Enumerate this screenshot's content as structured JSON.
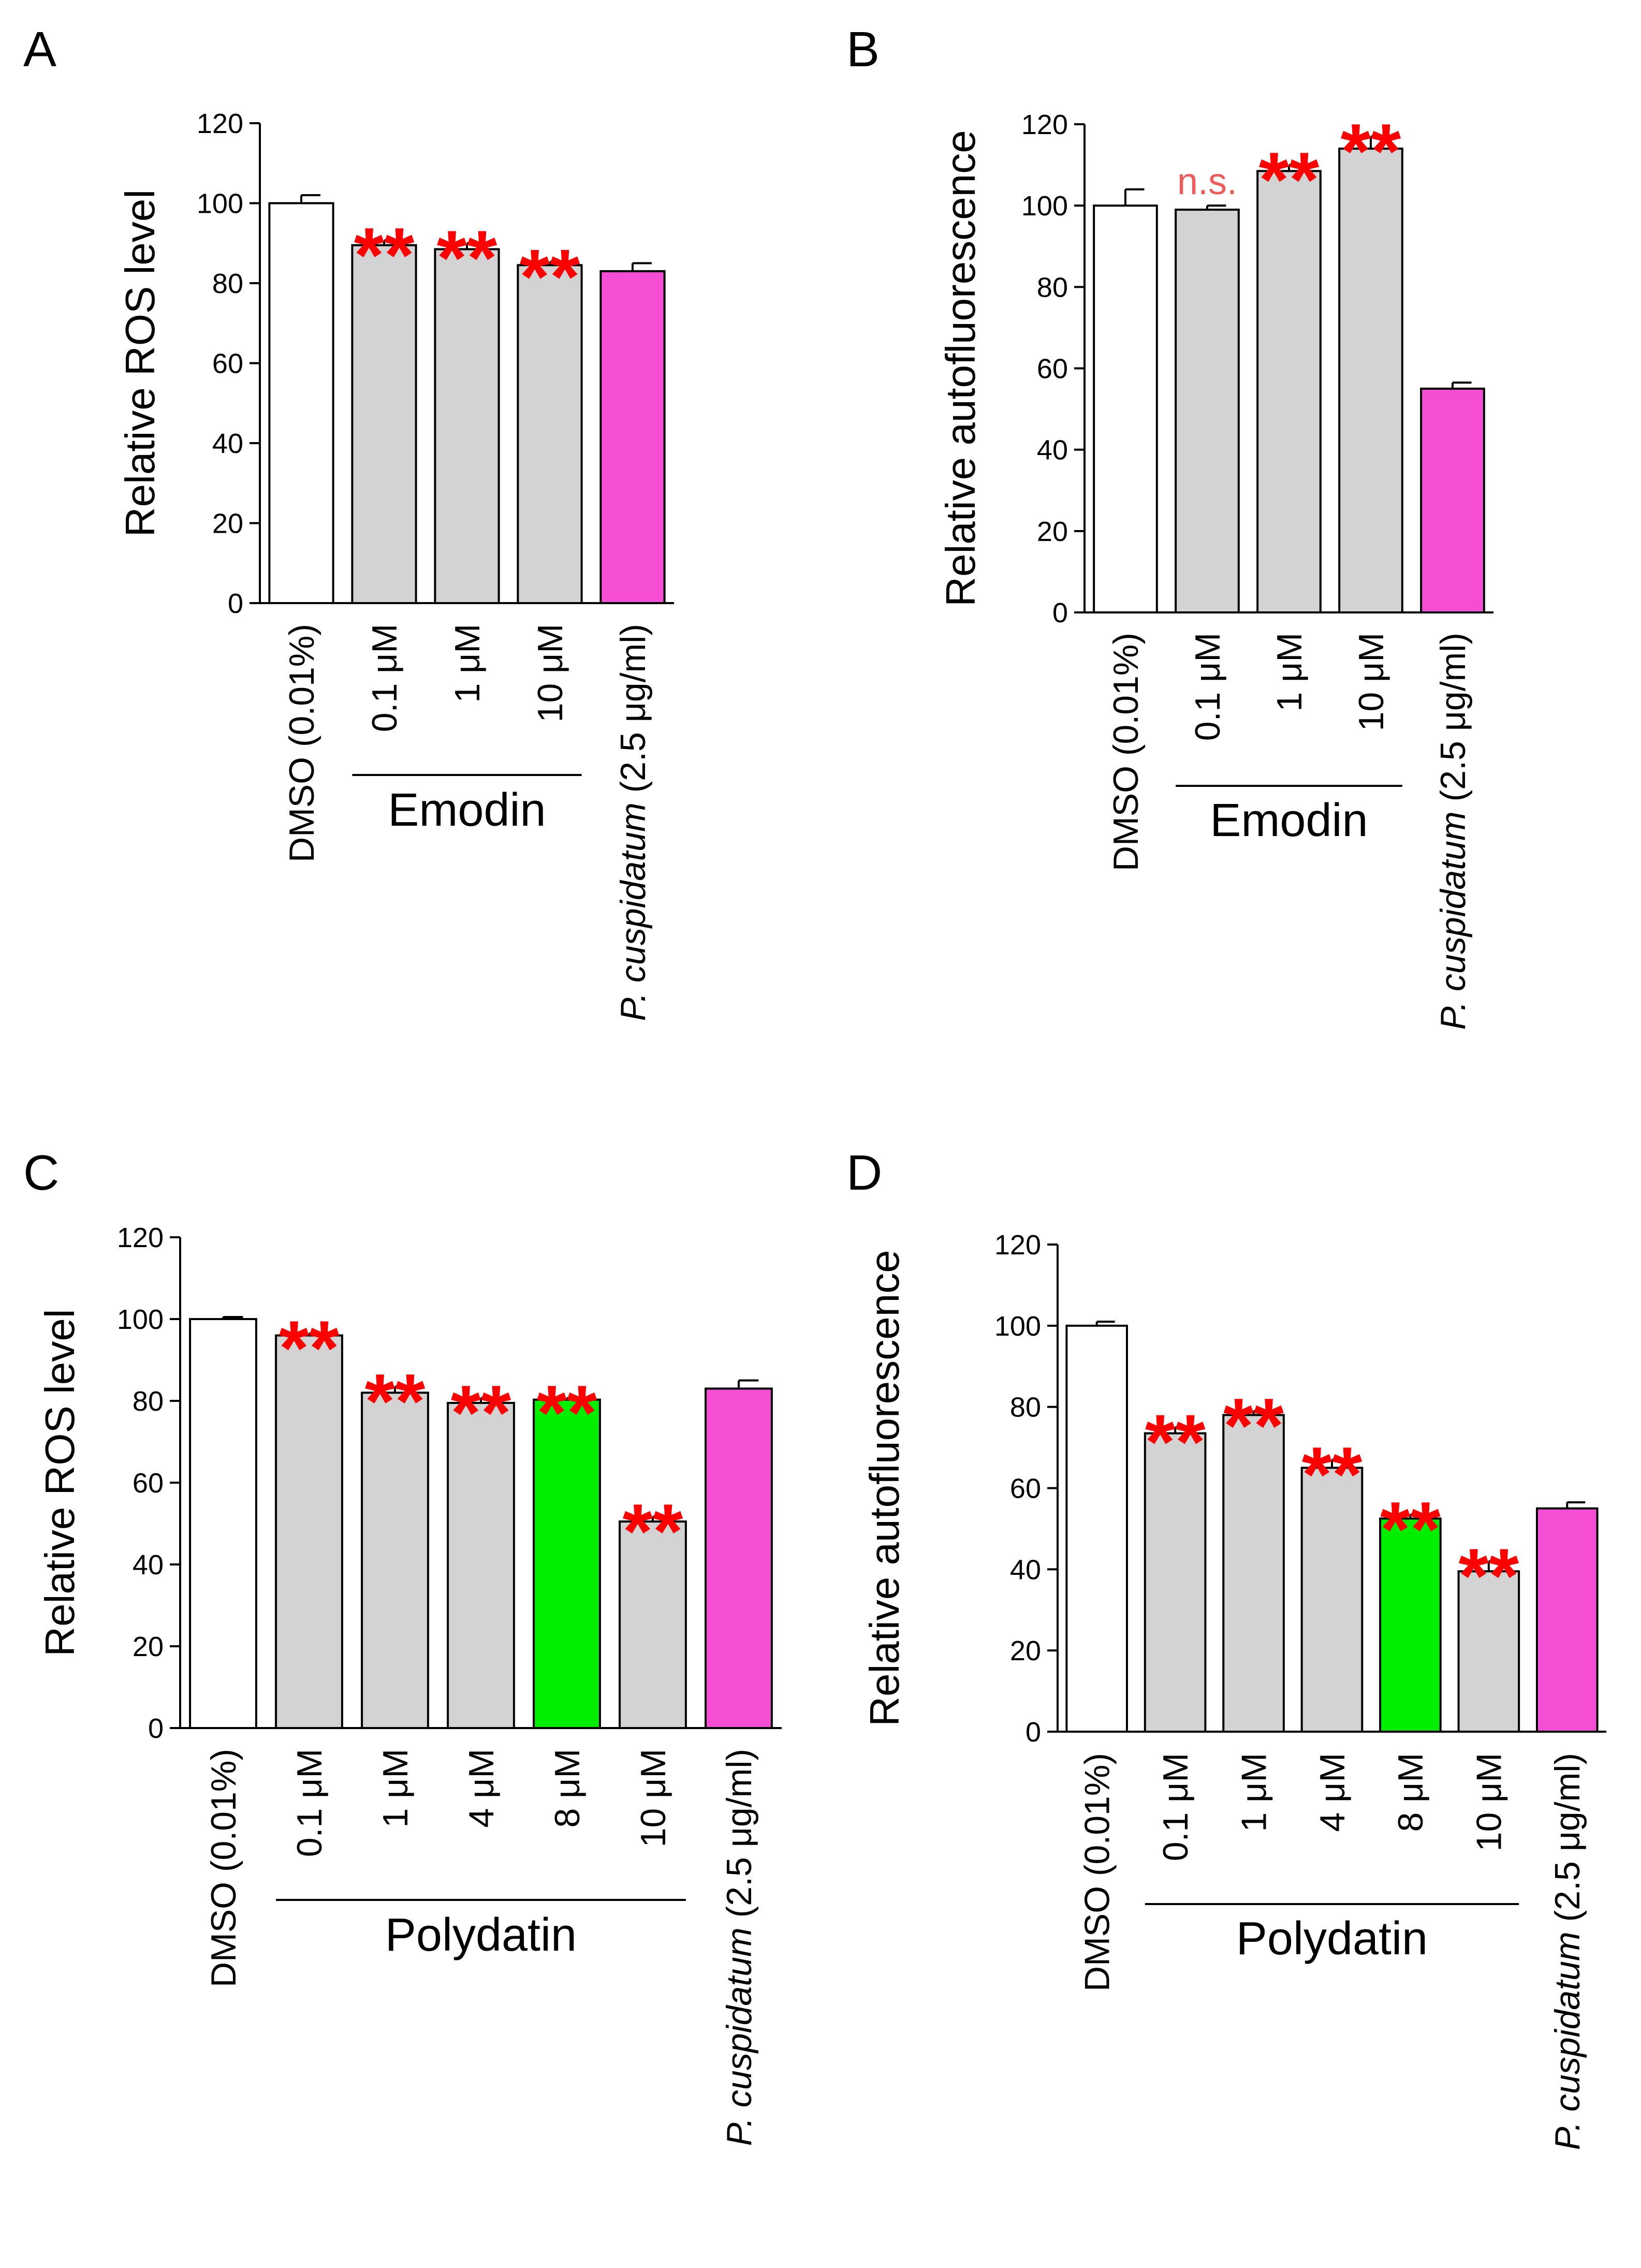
{
  "colors": {
    "axis": "#000000",
    "bar_edge": "#000000",
    "significance": "#ff0000",
    "ns": "#f25a5a",
    "dmso": "#ffffff",
    "treatment": "#d3d3d3",
    "highlight": "#00ee00",
    "reference": "#f54ed5"
  },
  "chart_data": [
    {
      "type": "bar",
      "panel_label": "A",
      "ylabel": "Relative ROS level",
      "ylim": [
        0,
        120
      ],
      "yticks": [
        "0",
        "20",
        "40",
        "60",
        "80",
        "100",
        "120"
      ],
      "categories": [
        "DMSO (0.01%)",
        "0.1 μM",
        "1 μM",
        "10 μM",
        "P. cuspidatum (2.5 μg/ml)"
      ],
      "values": [
        100,
        89.5,
        88.5,
        84.5,
        83
      ],
      "errors": [
        2,
        1.2,
        1.5,
        0.8,
        2
      ],
      "fills": [
        "dmso",
        "treatment",
        "treatment",
        "treatment",
        "reference"
      ],
      "significance": [
        "",
        "**",
        "**",
        "**",
        ""
      ],
      "group": {
        "label": "Emodin",
        "from": 1,
        "to": 3
      },
      "reference_label": {
        "italic": "P. cuspidatum",
        "rest": " (2.5 μg/ml)"
      }
    },
    {
      "type": "bar",
      "panel_label": "B",
      "ylabel": "Relative autofluorescence",
      "ylim": [
        0,
        120
      ],
      "yticks": [
        "0",
        "20",
        "40",
        "60",
        "80",
        "100",
        "120"
      ],
      "categories": [
        "DMSO (0.01%)",
        "0.1 μM",
        "1 μM",
        "10 μM",
        "P. cuspidatum (2.5 μg/ml)"
      ],
      "values": [
        100,
        99,
        108.5,
        114,
        55
      ],
      "errors": [
        4,
        1,
        1.5,
        3,
        1.5
      ],
      "fills": [
        "dmso",
        "treatment",
        "treatment",
        "treatment",
        "reference"
      ],
      "significance": [
        "",
        "n.s.",
        "**",
        "**",
        ""
      ],
      "group": {
        "label": "Emodin",
        "from": 1,
        "to": 3
      },
      "reference_label": {
        "italic": "P. cuspidatum",
        "rest": " (2.5 μg/ml)"
      }
    },
    {
      "type": "bar",
      "panel_label": "C",
      "ylabel": "Relative ROS level",
      "ylim": [
        0,
        120
      ],
      "yticks": [
        "0",
        "20",
        "40",
        "60",
        "80",
        "100",
        "120"
      ],
      "categories": [
        "DMSO (0.01%)",
        "0.1 μM",
        "1 μM",
        "4 μM",
        "8 μM",
        "10 μM",
        "P. cuspidatum (2.5 μg/ml)"
      ],
      "values": [
        100,
        96,
        82,
        79.5,
        80.3,
        50.5,
        83
      ],
      "errors": [
        0.5,
        0.5,
        1.5,
        1.2,
        0.4,
        1.2,
        2
      ],
      "fills": [
        "dmso",
        "treatment",
        "treatment",
        "treatment",
        "highlight",
        "treatment",
        "reference"
      ],
      "significance": [
        "",
        "**",
        "**",
        "**",
        "**",
        "**",
        ""
      ],
      "group": {
        "label": "Polydatin",
        "from": 1,
        "to": 5
      },
      "reference_label": {
        "italic": "P. cuspidatum",
        "rest": " (2.5 μg/ml)"
      }
    },
    {
      "type": "bar",
      "panel_label": "D",
      "ylabel": "Relative autofluorescence",
      "ylim": [
        0,
        120
      ],
      "yticks": [
        "0",
        "20",
        "40",
        "60",
        "80",
        "100",
        "120"
      ],
      "categories": [
        "DMSO (0.01%)",
        "0.1 μM",
        "1 μM",
        "4 μM",
        "8 μM",
        "10 μM",
        "P. cuspidatum (2.5 μg/ml)"
      ],
      "values": [
        100,
        73.5,
        78,
        65,
        52.5,
        39.5,
        55
      ],
      "errors": [
        1,
        1.5,
        1,
        2,
        1,
        2.5,
        1.5
      ],
      "fills": [
        "dmso",
        "treatment",
        "treatment",
        "treatment",
        "highlight",
        "treatment",
        "reference"
      ],
      "significance": [
        "",
        "**",
        "**",
        "**",
        "**",
        "**",
        ""
      ],
      "group": {
        "label": "Polydatin",
        "from": 1,
        "to": 5
      },
      "reference_label": {
        "italic": "P. cuspidatum",
        "rest": " (2.5 μg/ml)"
      }
    }
  ]
}
